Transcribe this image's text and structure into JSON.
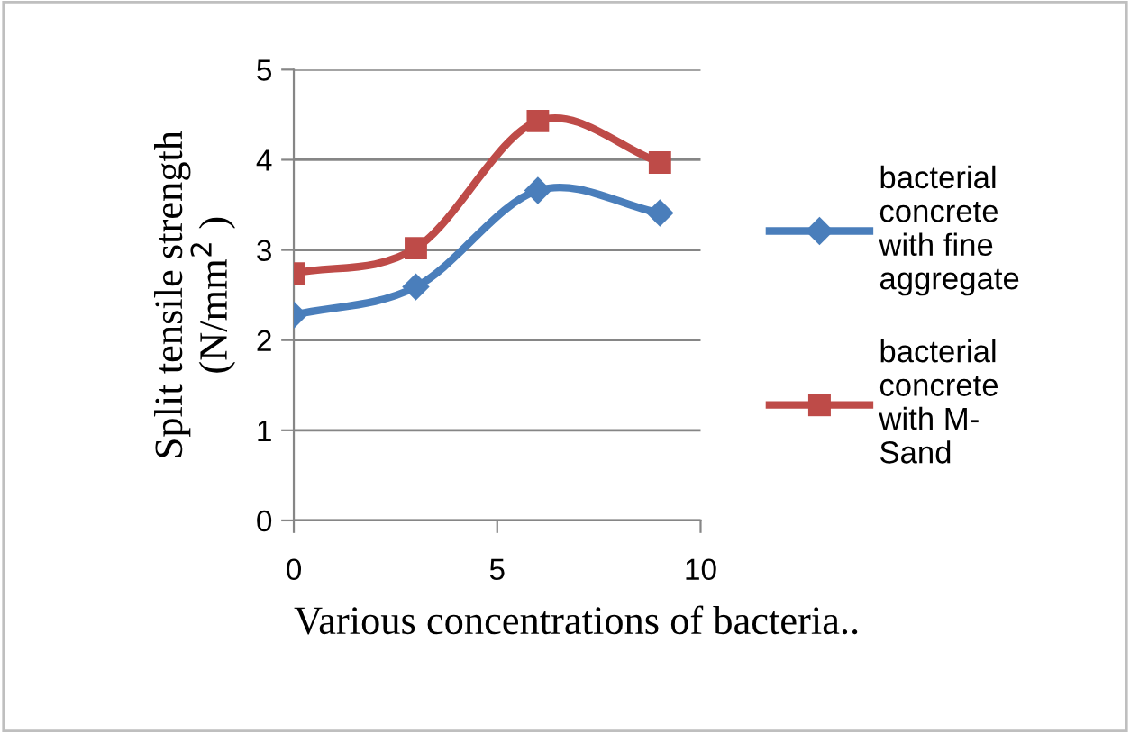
{
  "chart_data": {
    "type": "line",
    "xlabel": "Various concentrations of bacteria..",
    "ylabel": "Split tensile strength\n(N/mm$^{2}$ )",
    "xlim": [
      0,
      10
    ],
    "xticks": [
      0,
      5,
      10
    ],
    "ylim": [
      0,
      5
    ],
    "yticks": [
      0,
      1,
      2,
      3,
      4,
      5
    ],
    "grid": "y",
    "legend": "right",
    "line_style": "solid",
    "series": [
      {
        "name": "bacterial\nconcrete\nwith fine\naggregate",
        "color": "#4a7ebb",
        "marker": "diamond",
        "x": [
          0,
          3,
          6,
          9
        ],
        "values": [
          2.28,
          2.59,
          3.66,
          3.41
        ]
      },
      {
        "name": "bacterial\nconcrete\nwith M-\nSand",
        "color": "#be4b48",
        "marker": "square",
        "x": [
          0,
          3,
          6,
          9
        ],
        "values": [
          2.74,
          3.02,
          4.43,
          3.97
        ]
      }
    ]
  }
}
